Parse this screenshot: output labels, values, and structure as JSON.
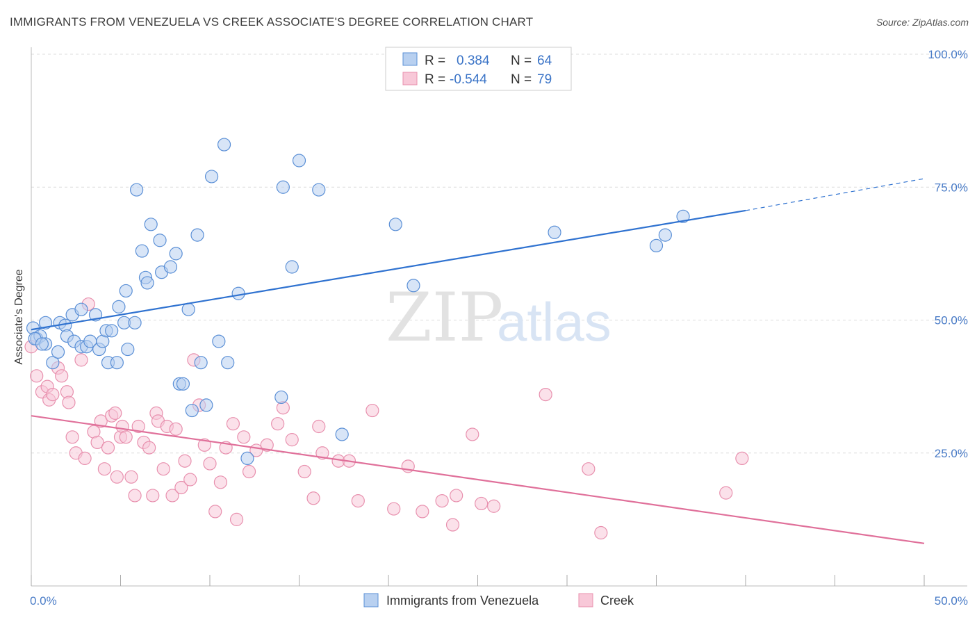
{
  "header": {
    "title": "IMMIGRANTS FROM VENEZUELA VS CREEK ASSOCIATE'S DEGREE CORRELATION CHART",
    "source": "Source: ZipAtlas.com"
  },
  "watermark": {
    "zip": "ZIP",
    "atlas": "atlas"
  },
  "legend": {
    "r_label": "R =",
    "n_label": "N =",
    "rows": [
      {
        "r": "0.384",
        "n": "64"
      },
      {
        "r": "-0.544",
        "n": "79"
      }
    ]
  },
  "colors": {
    "series1_fill": "#b8d0f0",
    "series1_stroke": "#5a8fd6",
    "series1_line": "#2f72d0",
    "series2_fill": "#f8c8d8",
    "series2_stroke": "#e890ae",
    "series2_line": "#e0709a",
    "tick": "#4a7cc7"
  },
  "chart_data": {
    "type": "scatter",
    "title": "IMMIGRANTS FROM VENEZUELA VS CREEK ASSOCIATE'S DEGREE CORRELATION CHART",
    "xlabel": "",
    "ylabel": "Associate's Degree",
    "xlim": [
      0,
      50
    ],
    "ylim": [
      0,
      100
    ],
    "x_tick_labels": [
      "0.0%",
      "50.0%"
    ],
    "y_tick_labels": [
      "25.0%",
      "50.0%",
      "75.0%",
      "100.0%"
    ],
    "y_ticks": [
      25,
      50,
      75,
      100
    ],
    "grid": true,
    "legend_position": "top-center",
    "series": [
      {
        "name": "Immigrants from Venezuela",
        "r": 0.384,
        "n": 64,
        "trend": {
          "x0": 0,
          "y0": 48.2,
          "x1": 40,
          "y1": 70.6,
          "dash_to_x": 50,
          "dash_to_y": 76.6
        },
        "points": [
          [
            0.1,
            48.5
          ],
          [
            0.3,
            46.5
          ],
          [
            0.5,
            47
          ],
          [
            0.8,
            49.5
          ],
          [
            0.8,
            45.5
          ],
          [
            1.2,
            42
          ],
          [
            1.5,
            44
          ],
          [
            1.6,
            49.5
          ],
          [
            1.9,
            49
          ],
          [
            2.0,
            47
          ],
          [
            2.3,
            51
          ],
          [
            2.4,
            46
          ],
          [
            2.8,
            52
          ],
          [
            2.8,
            45
          ],
          [
            3.1,
            45
          ],
          [
            3.3,
            46
          ],
          [
            3.6,
            51
          ],
          [
            3.8,
            44.5
          ],
          [
            4.0,
            46
          ],
          [
            4.2,
            48
          ],
          [
            4.3,
            42
          ],
          [
            4.5,
            48
          ],
          [
            4.8,
            42
          ],
          [
            4.9,
            52.5
          ],
          [
            5.2,
            49.5
          ],
          [
            5.3,
            55.5
          ],
          [
            5.4,
            44.5
          ],
          [
            5.8,
            49.5
          ],
          [
            5.9,
            74.5
          ],
          [
            6.2,
            63
          ],
          [
            6.4,
            58
          ],
          [
            6.5,
            57
          ],
          [
            6.7,
            68
          ],
          [
            7.2,
            65
          ],
          [
            7.3,
            59
          ],
          [
            7.8,
            60
          ],
          [
            8.1,
            62.5
          ],
          [
            8.3,
            38
          ],
          [
            8.5,
            38
          ],
          [
            8.8,
            52
          ],
          [
            9.0,
            33
          ],
          [
            9.3,
            66
          ],
          [
            9.5,
            42
          ],
          [
            9.8,
            34
          ],
          [
            10.1,
            77
          ],
          [
            10.5,
            46
          ],
          [
            10.8,
            83
          ],
          [
            11.0,
            42
          ],
          [
            11.6,
            55
          ],
          [
            12.1,
            24
          ],
          [
            14.0,
            35.5
          ],
          [
            14.1,
            75
          ],
          [
            14.6,
            60
          ],
          [
            15.0,
            80
          ],
          [
            16.1,
            74.5
          ],
          [
            17.4,
            28.5
          ],
          [
            20.4,
            68
          ],
          [
            21.4,
            56.5
          ],
          [
            29.3,
            66.5
          ],
          [
            35.0,
            64
          ],
          [
            35.5,
            66
          ],
          [
            36.5,
            69.5
          ],
          [
            0.2,
            46.5
          ],
          [
            0.6,
            45.5
          ]
        ]
      },
      {
        "name": "Creek",
        "r": -0.544,
        "n": 79,
        "trend": {
          "x0": 0,
          "y0": 32,
          "x1": 50,
          "y1": 8
        },
        "points": [
          [
            0.0,
            45
          ],
          [
            0.3,
            39.5
          ],
          [
            0.6,
            36.5
          ],
          [
            0.9,
            37.5
          ],
          [
            1.0,
            35
          ],
          [
            1.2,
            36
          ],
          [
            1.5,
            41
          ],
          [
            1.7,
            39.5
          ],
          [
            2.0,
            36.5
          ],
          [
            2.1,
            34.5
          ],
          [
            2.3,
            28
          ],
          [
            2.5,
            25
          ],
          [
            2.8,
            42.5
          ],
          [
            3.0,
            24
          ],
          [
            3.2,
            53
          ],
          [
            3.5,
            29
          ],
          [
            3.7,
            27
          ],
          [
            3.9,
            31
          ],
          [
            4.1,
            22
          ],
          [
            4.3,
            26
          ],
          [
            4.5,
            32
          ],
          [
            4.7,
            32.5
          ],
          [
            4.8,
            20.5
          ],
          [
            5.0,
            28
          ],
          [
            5.1,
            30
          ],
          [
            5.3,
            28
          ],
          [
            5.6,
            20.5
          ],
          [
            5.8,
            17
          ],
          [
            6.0,
            30
          ],
          [
            6.3,
            27
          ],
          [
            6.6,
            26
          ],
          [
            6.8,
            17
          ],
          [
            7.0,
            32.5
          ],
          [
            7.1,
            31
          ],
          [
            7.4,
            22
          ],
          [
            7.6,
            30
          ],
          [
            7.9,
            17
          ],
          [
            8.1,
            29.5
          ],
          [
            8.4,
            18.5
          ],
          [
            8.6,
            23.5
          ],
          [
            8.9,
            20
          ],
          [
            9.1,
            42.5
          ],
          [
            9.4,
            34
          ],
          [
            9.7,
            26.5
          ],
          [
            10.0,
            23
          ],
          [
            10.3,
            14
          ],
          [
            10.6,
            19.5
          ],
          [
            10.9,
            26
          ],
          [
            11.3,
            30.5
          ],
          [
            11.5,
            12.5
          ],
          [
            11.9,
            28
          ],
          [
            12.2,
            21.5
          ],
          [
            12.6,
            25.5
          ],
          [
            13.2,
            26.5
          ],
          [
            13.8,
            30.5
          ],
          [
            14.1,
            33.5
          ],
          [
            14.6,
            27.5
          ],
          [
            15.3,
            21.5
          ],
          [
            15.8,
            16.5
          ],
          [
            16.1,
            30
          ],
          [
            16.3,
            25
          ],
          [
            17.2,
            23.5
          ],
          [
            17.8,
            23.5
          ],
          [
            18.3,
            16
          ],
          [
            19.1,
            33
          ],
          [
            20.3,
            14.5
          ],
          [
            21.1,
            22.5
          ],
          [
            21.9,
            14
          ],
          [
            23.0,
            16
          ],
          [
            23.6,
            11.5
          ],
          [
            23.8,
            17
          ],
          [
            24.7,
            28.5
          ],
          [
            25.2,
            15.5
          ],
          [
            25.9,
            15
          ],
          [
            28.8,
            36
          ],
          [
            31.2,
            22
          ],
          [
            31.9,
            10
          ],
          [
            38.9,
            17.5
          ],
          [
            39.8,
            24
          ]
        ]
      }
    ]
  },
  "bottom_legend": [
    "Immigrants from Venezuela",
    "Creek"
  ]
}
